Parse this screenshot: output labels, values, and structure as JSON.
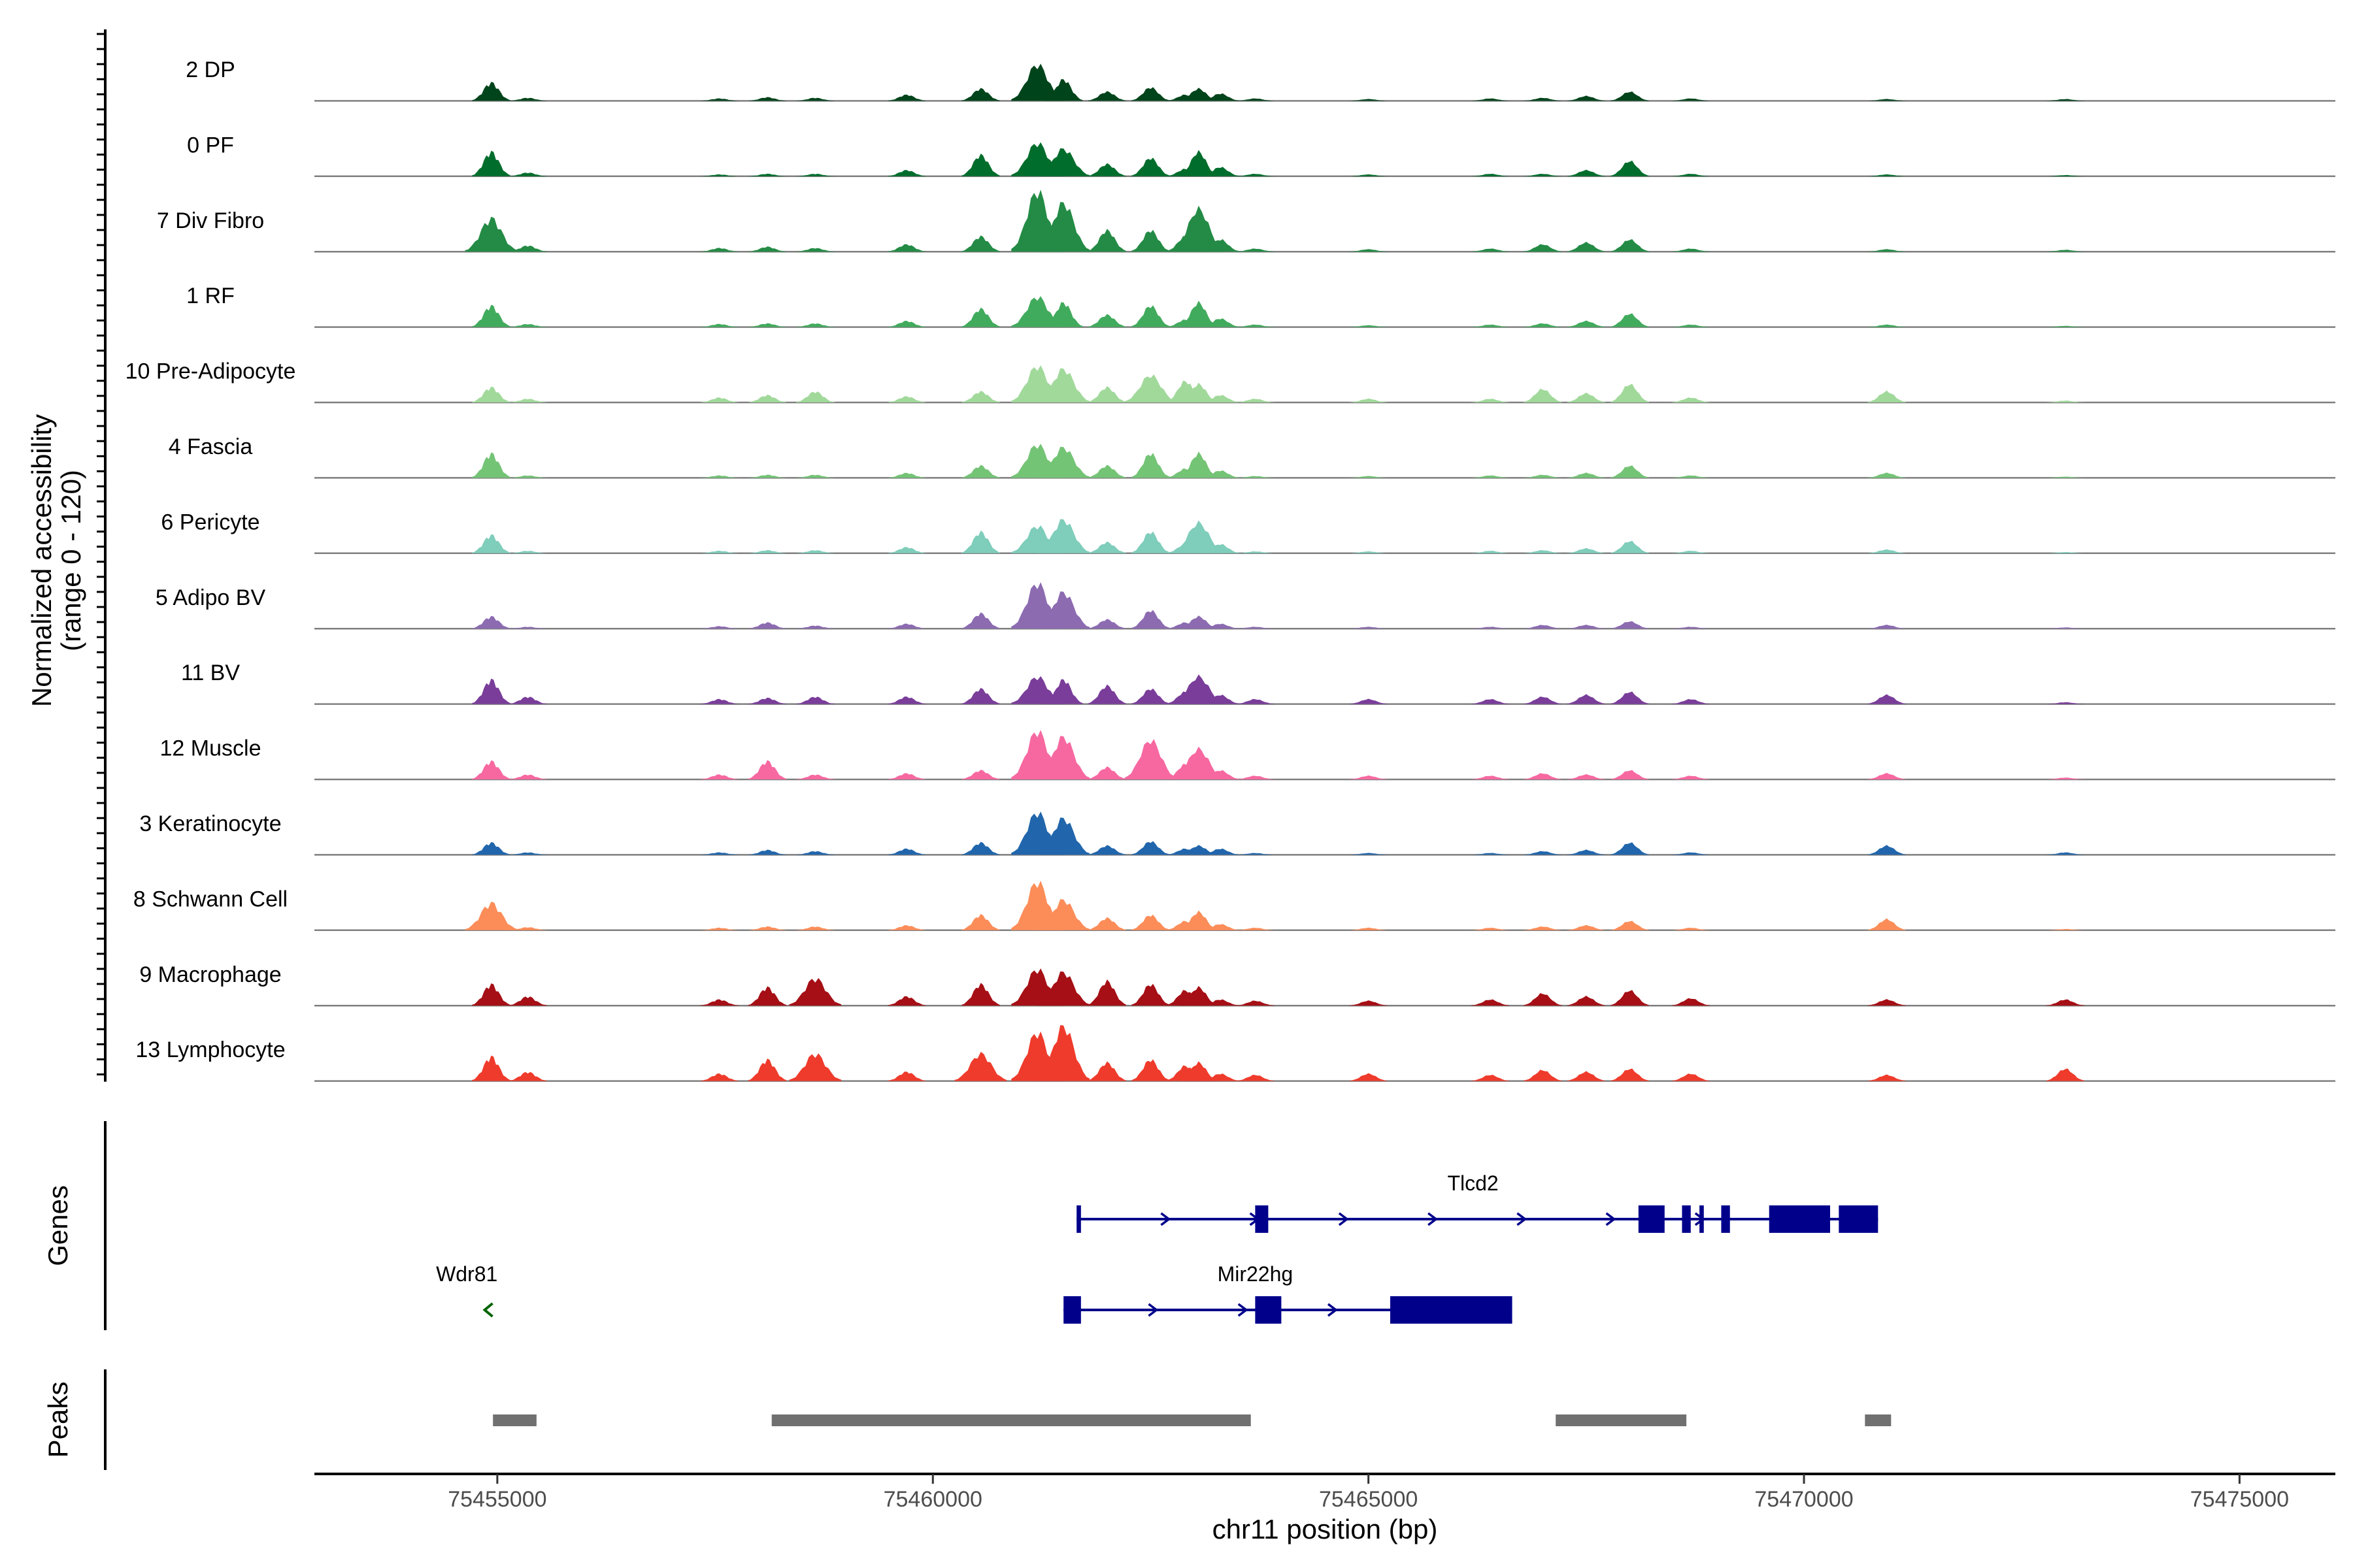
{
  "chart_data": {
    "type": "area",
    "title": "",
    "ylabel": "Normalized accessibility\n(range 0 - 120)",
    "ylim": [
      0,
      120
    ],
    "xlabel": "chr11 position (bp)",
    "xlim": [
      75452900,
      75476100
    ],
    "x_ticks": [
      {
        "value": 75455000,
        "label": "75455000"
      },
      {
        "value": 75460000,
        "label": "75460000"
      },
      {
        "value": 75465000,
        "label": "75465000"
      },
      {
        "value": 75470000,
        "label": "75470000"
      },
      {
        "value": 75475000,
        "label": "75475000"
      }
    ],
    "peak_centers": [
      75454930,
      75455350,
      75457550,
      75458100,
      75458650,
      75459700,
      75460550,
      75461200,
      75461500,
      75462000,
      75462500,
      75462900,
      75463050,
      75463300,
      75463700,
      75465000,
      75466400,
      75467000,
      75467500,
      75468000,
      75468700,
      75470950,
      75473000
    ],
    "series": [
      {
        "name": "2 DP",
        "color": "#00441b",
        "values": [
          30,
          5,
          4,
          6,
          5,
          10,
          20,
          60,
          35,
          15,
          22,
          10,
          20,
          12,
          4,
          3,
          4,
          5,
          8,
          15,
          4,
          3,
          3
        ]
      },
      {
        "name": "0 PF",
        "color": "#006d2c",
        "values": [
          40,
          6,
          3,
          4,
          4,
          10,
          35,
          55,
          45,
          20,
          30,
          12,
          40,
          15,
          4,
          3,
          4,
          4,
          10,
          25,
          4,
          3,
          2
        ]
      },
      {
        "name": "7 Div Fibro",
        "color": "#238b45",
        "values": [
          55,
          10,
          6,
          8,
          6,
          12,
          25,
          100,
          80,
          35,
          35,
          25,
          70,
          20,
          5,
          4,
          5,
          12,
          15,
          20,
          5,
          4,
          3
        ]
      },
      {
        "name": "1 RF",
        "color": "#41ab5d",
        "values": [
          35,
          5,
          5,
          6,
          6,
          10,
          30,
          50,
          40,
          20,
          35,
          12,
          40,
          14,
          4,
          3,
          4,
          6,
          10,
          22,
          4,
          4,
          2
        ]
      },
      {
        "name": "10 Pre-Adipocyte",
        "color": "#a1d99b",
        "values": [
          25,
          6,
          8,
          12,
          18,
          10,
          18,
          60,
          55,
          25,
          45,
          35,
          30,
          12,
          6,
          6,
          6,
          22,
          15,
          30,
          8,
          18,
          3
        ]
      },
      {
        "name": "4 Fascia",
        "color": "#74c476",
        "values": [
          40,
          4,
          4,
          5,
          5,
          8,
          20,
          55,
          50,
          20,
          40,
          15,
          40,
          12,
          3,
          3,
          4,
          5,
          8,
          20,
          4,
          8,
          2
        ]
      },
      {
        "name": "6 Pericyte",
        "color": "#7fcdbb",
        "values": [
          30,
          4,
          4,
          5,
          5,
          10,
          35,
          45,
          55,
          18,
          35,
          15,
          50,
          15,
          3,
          3,
          4,
          5,
          8,
          20,
          4,
          6,
          2
        ]
      },
      {
        "name": "5 Adipo BV",
        "color": "#8c6bb1",
        "values": [
          20,
          3,
          4,
          10,
          5,
          8,
          25,
          75,
          60,
          15,
          30,
          10,
          20,
          8,
          3,
          3,
          3,
          6,
          6,
          12,
          3,
          6,
          2
        ]
      },
      {
        "name": "11 BV",
        "color": "#7a3d9a",
        "values": [
          40,
          12,
          8,
          10,
          12,
          12,
          25,
          45,
          40,
          30,
          25,
          20,
          45,
          15,
          8,
          8,
          8,
          12,
          15,
          20,
          8,
          15,
          3
        ]
      },
      {
        "name": "12 Muscle",
        "color": "#f768a1",
        "values": [
          30,
          8,
          8,
          30,
          8,
          10,
          15,
          80,
          70,
          20,
          65,
          25,
          50,
          15,
          6,
          6,
          6,
          10,
          8,
          15,
          6,
          10,
          3
        ]
      },
      {
        "name": "3 Keratinocyte",
        "color": "#2166ac",
        "values": [
          20,
          4,
          4,
          8,
          6,
          10,
          20,
          70,
          60,
          15,
          22,
          10,
          15,
          10,
          3,
          3,
          3,
          6,
          8,
          20,
          4,
          15,
          4
        ]
      },
      {
        "name": "8 Schwann Cell",
        "color": "#fc8d59",
        "values": [
          45,
          5,
          4,
          6,
          6,
          8,
          25,
          80,
          50,
          20,
          25,
          15,
          30,
          10,
          4,
          4,
          4,
          6,
          8,
          15,
          4,
          18,
          2
        ]
      },
      {
        "name": "9 Macrophage",
        "color": "#a50f15",
        "values": [
          35,
          15,
          10,
          30,
          45,
          15,
          35,
          60,
          55,
          40,
          35,
          25,
          30,
          10,
          8,
          8,
          10,
          20,
          15,
          25,
          12,
          10,
          10
        ]
      },
      {
        "name": "13 Lymphocyte",
        "color": "#ef3b2c",
        "values": [
          40,
          15,
          12,
          35,
          45,
          15,
          45,
          80,
          90,
          30,
          35,
          25,
          30,
          12,
          10,
          12,
          10,
          18,
          15,
          20,
          12,
          10,
          20
        ]
      }
    ],
    "genes": [
      {
        "name": "Tlcd2",
        "start": 75461650,
        "end": 75470850,
        "strand": "+",
        "color": "#00008b",
        "exons": [
          [
            75461650,
            75461700
          ],
          [
            75463700,
            75463850
          ],
          [
            75468100,
            75468400
          ],
          [
            75468600,
            75468700
          ],
          [
            75468800,
            75468850
          ],
          [
            75469050,
            75469150
          ],
          [
            75469600,
            75470300
          ],
          [
            75470400,
            75470850
          ]
        ]
      },
      {
        "name": "Mir22hg",
        "start": 75461500,
        "end": 75466650,
        "strand": "+",
        "color": "#00008b",
        "exons": [
          [
            75461500,
            75461700
          ],
          [
            75463700,
            75464000
          ],
          [
            75465250,
            75466650
          ]
        ]
      },
      {
        "name": "Wdr81",
        "start": 75454900,
        "end": 75454950,
        "strand": "-",
        "color": "#006400",
        "exons": []
      }
    ],
    "peaks": [
      [
        75454950,
        75455450
      ],
      [
        75458150,
        75463650
      ],
      [
        75467150,
        75468650
      ],
      [
        75470700,
        75471000
      ]
    ],
    "panels": {
      "genes_title": "Genes",
      "peaks_title": "Peaks"
    }
  }
}
